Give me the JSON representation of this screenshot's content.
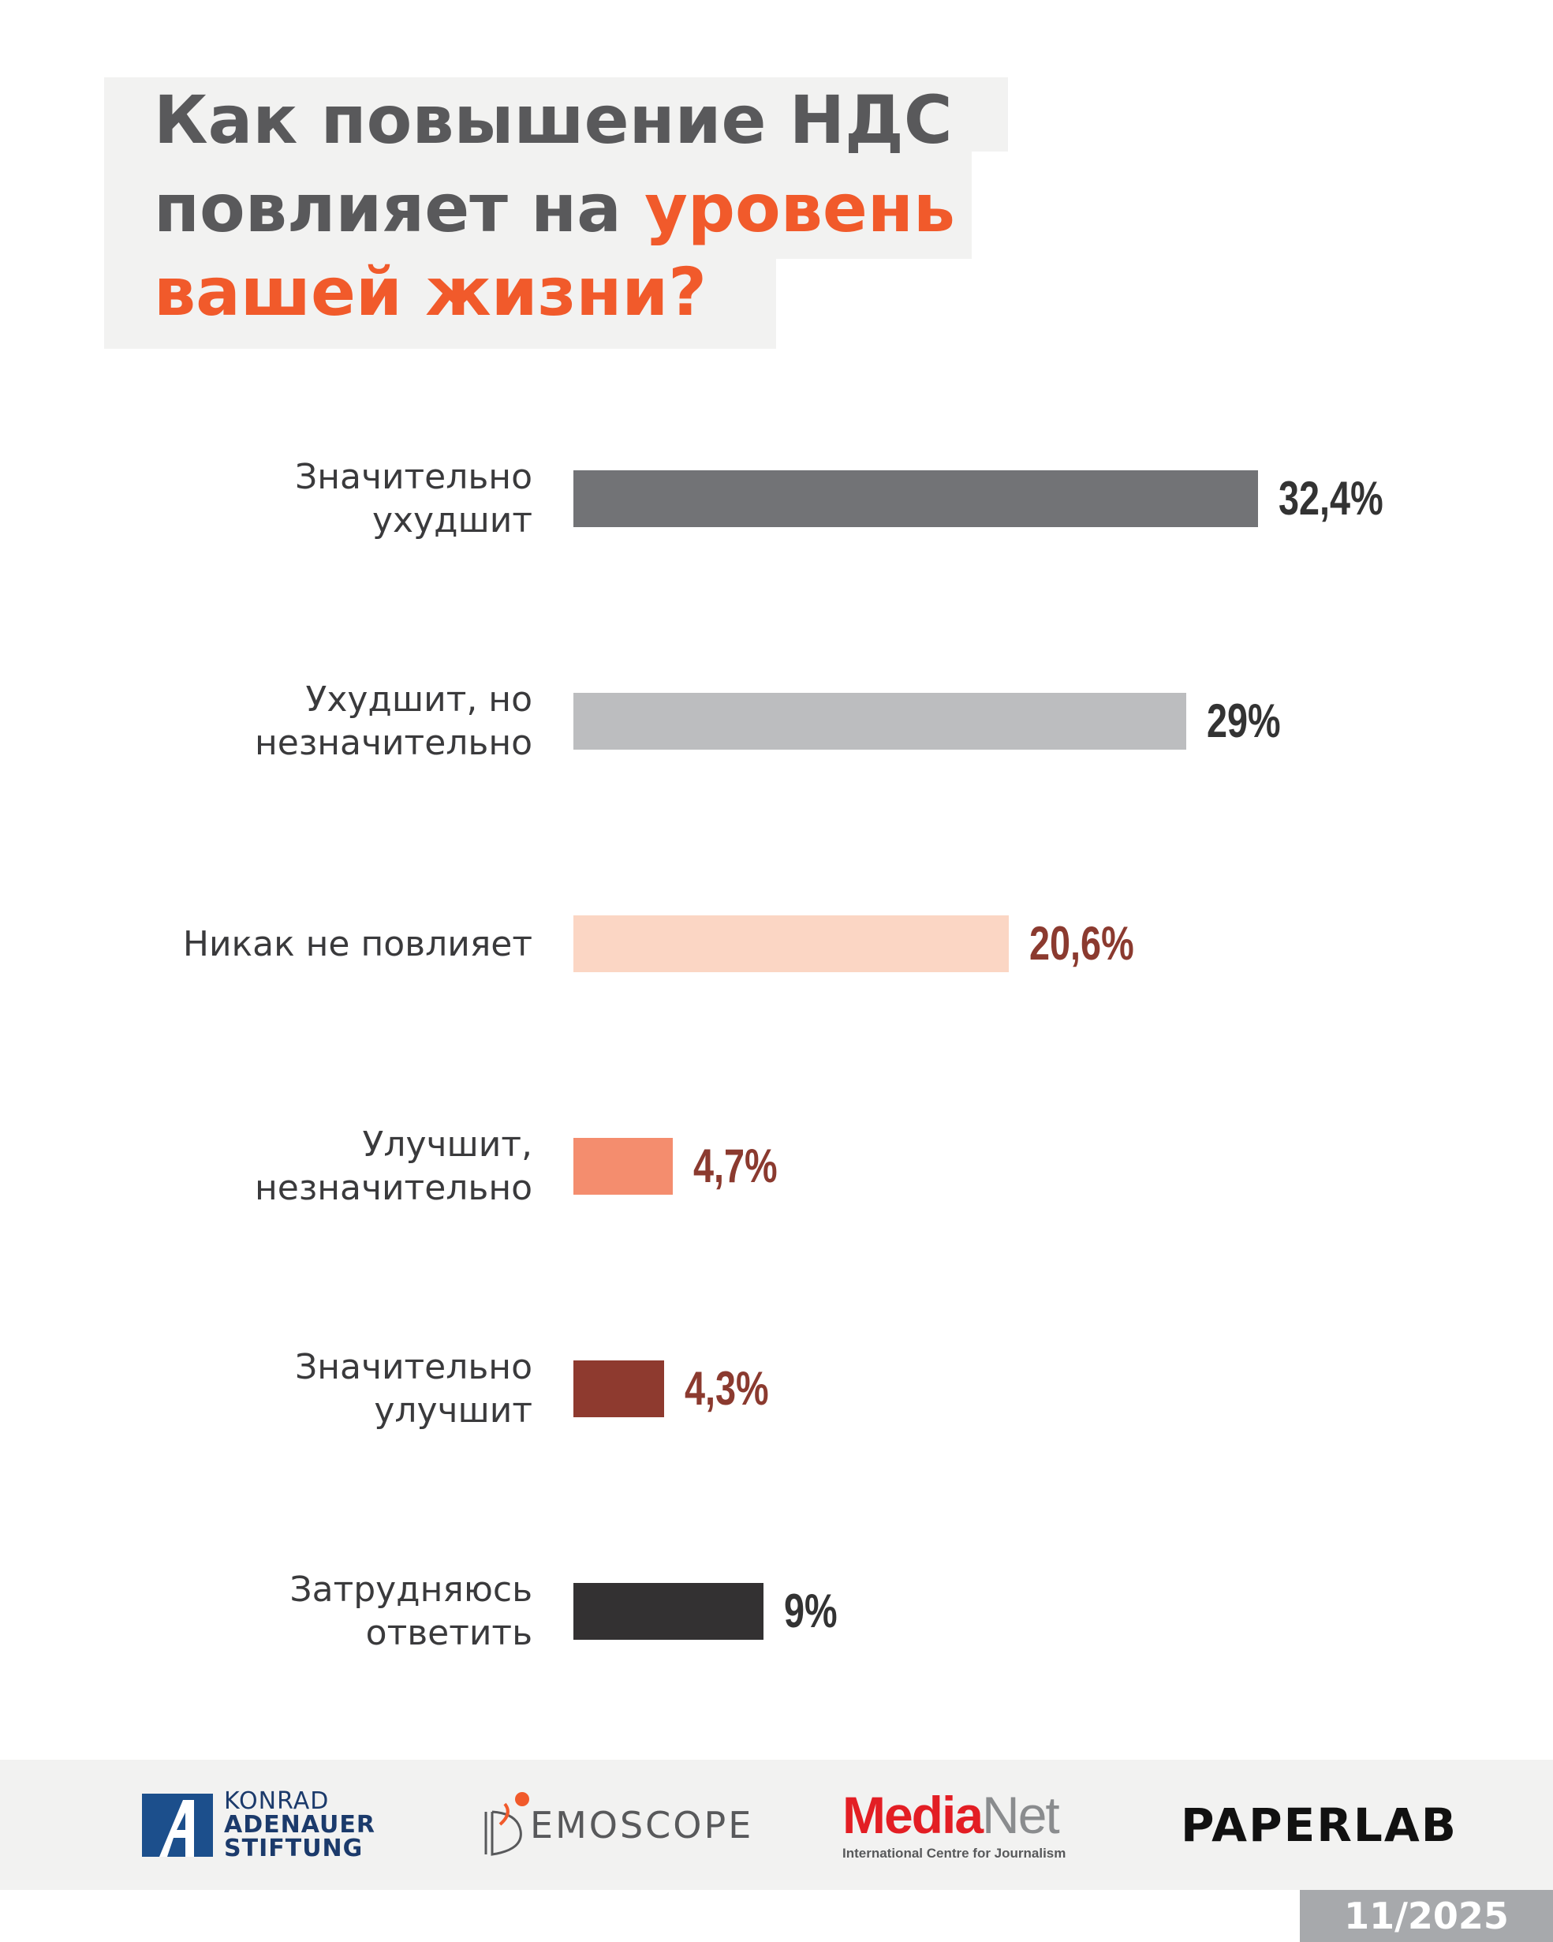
{
  "title": {
    "line1": "Как повышение НДС",
    "line2_plain": "повлияет на ",
    "line2_accent": "уровень",
    "line3_accent": "вашей жизни?"
  },
  "colors": {
    "accent": "#f15a2b",
    "title_bg": "#f2f2f1",
    "text_dark": "#3a3a3c",
    "value_dark": "#333333",
    "value_red": "#8b3a2f"
  },
  "chart_data": {
    "type": "bar",
    "orientation": "horizontal",
    "categories": [
      "Значительно ухудшит",
      "Ухудшит, но незначительно",
      "Никак не повлияет",
      "Улучшит, незначительно",
      "Значительно улучшит",
      "Затрудняюсь ответить"
    ],
    "category_lines": [
      [
        "Значительно",
        "ухудшит"
      ],
      [
        "Ухудшит, но",
        "незначительно"
      ],
      [
        "Никак не повлияет"
      ],
      [
        "Улучшит,",
        "незначительно"
      ],
      [
        "Значительно",
        "улучшит"
      ],
      [
        "Затрудняюсь",
        "ответить"
      ]
    ],
    "values": [
      32.4,
      29,
      20.6,
      4.7,
      4.3,
      9
    ],
    "value_labels": [
      "32,4%",
      "29%",
      "20,6%",
      "4,7%",
      "4,3%",
      "9%"
    ],
    "bar_colors": [
      "#727376",
      "#bcbdbf",
      "#fbd6c4",
      "#f48d6e",
      "#8e3a2f",
      "#333132"
    ],
    "label_colors": [
      "#333333",
      "#333333",
      "#8b3a2f",
      "#8b3a2f",
      "#8b3a2f",
      "#333333"
    ],
    "unit": "%",
    "grid": false,
    "legend": "none"
  },
  "footer": {
    "kas": [
      "KONRAD",
      "ADENAUER",
      "STIFTUNG"
    ],
    "demoscope": "EMOSCOPE",
    "medianet_media": "Media",
    "medianet_net": "Net",
    "medianet_sub": "International Centre for Journalism",
    "paperlab": "PAPERLAB",
    "date": "11/2025"
  }
}
